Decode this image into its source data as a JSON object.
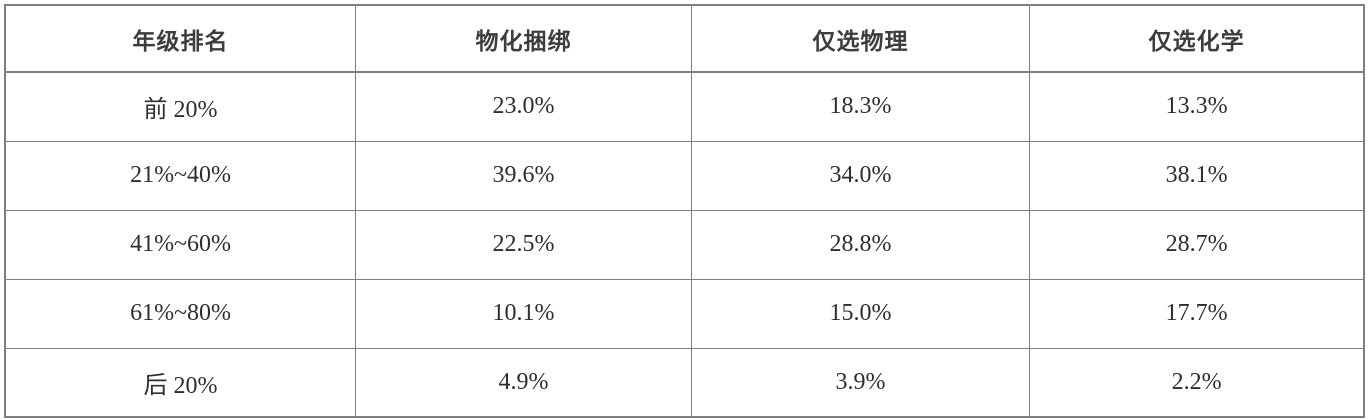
{
  "table": {
    "headers": [
      "年级排名",
      "物化捆绑",
      "仅选物理",
      "仅选化学"
    ],
    "rows": [
      [
        "前 20%",
        "23.0%",
        "18.3%",
        "13.3%"
      ],
      [
        "21%~40%",
        "39.6%",
        "34.0%",
        "38.1%"
      ],
      [
        "41%~60%",
        "22.5%",
        "28.8%",
        "28.7%"
      ],
      [
        "61%~80%",
        "10.1%",
        "15.0%",
        "17.7%"
      ],
      [
        "后 20%",
        "4.9%",
        "3.9%",
        "2.2%"
      ]
    ]
  },
  "colors": {
    "border": "#7f7f7f",
    "header_text": "#3d3d3d",
    "body_text": "#2e2e2e",
    "background": "#ffffff"
  },
  "chart_data": {
    "type": "table",
    "title": "",
    "columns": [
      "年级排名",
      "物化捆绑",
      "仅选物理",
      "仅选化学"
    ],
    "categories": [
      "前 20%",
      "21%~40%",
      "41%~60%",
      "61%~80%",
      "后 20%"
    ],
    "series": [
      {
        "name": "物化捆绑",
        "values": [
          23.0,
          39.6,
          22.5,
          10.1,
          4.9
        ]
      },
      {
        "name": "仅选物理",
        "values": [
          18.3,
          34.0,
          28.8,
          15.0,
          3.9
        ]
      },
      {
        "name": "仅选化学",
        "values": [
          13.3,
          38.1,
          28.7,
          17.7,
          2.2
        ]
      }
    ],
    "value_unit": "%",
    "layout": {
      "grid": "full-borders",
      "header_row": true
    }
  }
}
